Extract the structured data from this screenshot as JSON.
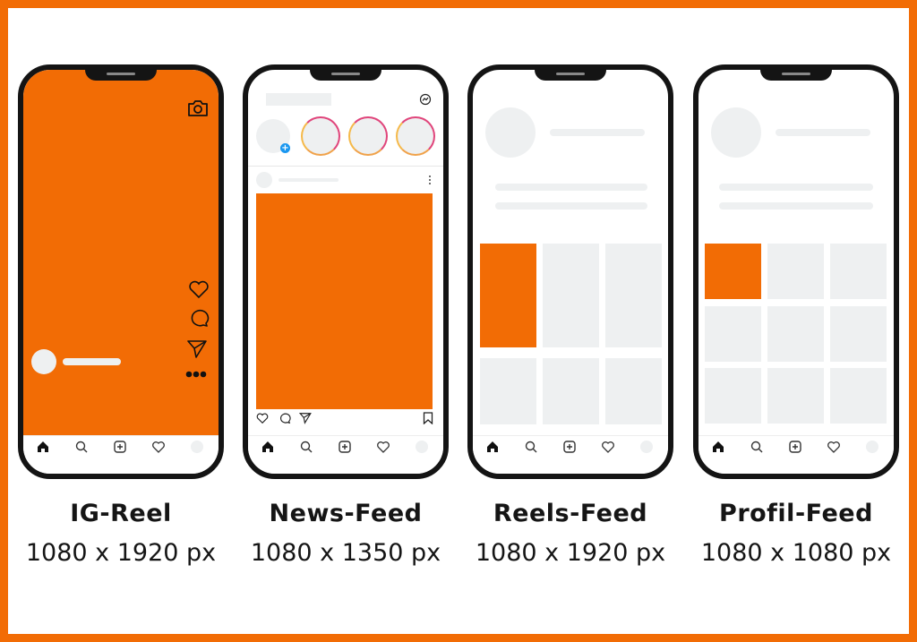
{
  "colors": {
    "accent": "#f26c05",
    "placeholder": "#eef0f1",
    "phone_frame": "#141414"
  },
  "formats": [
    {
      "title": "IG-Reel",
      "size": "1080 x 1920 px"
    },
    {
      "title": "News-Feed",
      "size": "1080 x 1350 px"
    },
    {
      "title": "Reels-Feed",
      "size": "1080 x 1920 px"
    },
    {
      "title": "Profil-Feed",
      "size": "1080 x 1080 px"
    }
  ],
  "icons": {
    "reel": [
      "camera-icon",
      "heart-icon",
      "comment-icon",
      "send-icon",
      "more-icon"
    ],
    "post": [
      "heart-icon",
      "comment-icon",
      "send-icon",
      "bookmark-icon"
    ],
    "nav": [
      "home-icon",
      "search-icon",
      "add-icon",
      "heart-icon",
      "profile-icon"
    ]
  }
}
